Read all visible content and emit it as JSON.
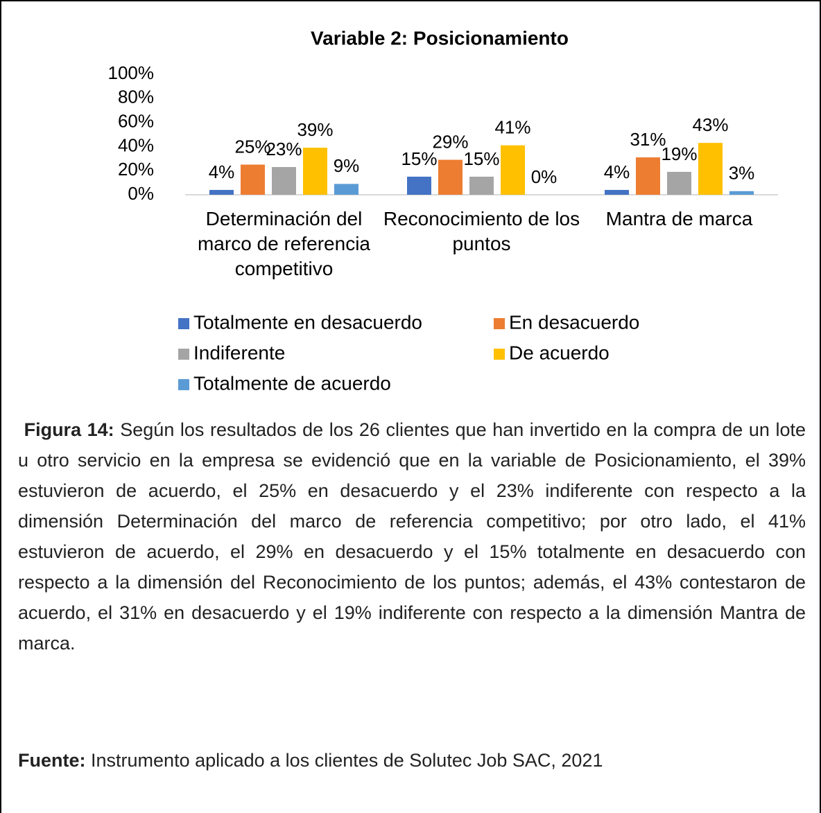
{
  "chart_data": {
    "type": "bar",
    "title": "Variable 2: Posicionamiento",
    "categories": [
      "Determinación del marco de referencia competitivo",
      "Reconocimiento de los puntos",
      "Mantra de marca"
    ],
    "series": [
      {
        "name": "Totalmente en desacuerdo",
        "color": "#4472c4",
        "values": [
          4,
          15,
          4
        ],
        "value_labels": [
          "4%",
          "15%",
          "4%"
        ]
      },
      {
        "name": "En desacuerdo",
        "color": "#ed7d31",
        "values": [
          25,
          29,
          31
        ],
        "value_labels": [
          "25%",
          "29%",
          "31%"
        ]
      },
      {
        "name": "Indiferente",
        "color": "#a5a5a5",
        "values": [
          23,
          15,
          19
        ],
        "value_labels": [
          "23%",
          "15%",
          "19%"
        ]
      },
      {
        "name": "De acuerdo",
        "color": "#ffc000",
        "values": [
          39,
          41,
          43
        ],
        "value_labels": [
          "39%",
          "41%",
          "43%"
        ]
      },
      {
        "name": "Totalmente de acuerdo",
        "color": "#5b9bd5",
        "values": [
          9,
          0,
          3
        ],
        "value_labels": [
          "9%",
          "0%",
          "3%"
        ]
      }
    ],
    "ylim": [
      0,
      100
    ],
    "yticks": [
      {
        "value": 0,
        "label": "0%"
      },
      {
        "value": 20,
        "label": "20%"
      },
      {
        "value": 40,
        "label": "40%"
      },
      {
        "value": 60,
        "label": "60%"
      },
      {
        "value": 80,
        "label": "80%"
      },
      {
        "value": 100,
        "label": "100%"
      }
    ],
    "grid": false,
    "legend": "bottom"
  },
  "caption": {
    "label": "Figura 14:",
    "text": "Según los resultados de los 26 clientes que han invertido en la compra de un lote u otro servicio en la empresa se evidenció que en la variable de Posicionamiento, el 39% estuvieron de acuerdo, el 25% en desacuerdo y el 23% indiferente con respecto a la dimensión Determinación del marco de referencia competitivo; por otro lado, el 41% estuvieron de acuerdo, el 29% en desacuerdo y el 15% totalmente en desacuerdo con respecto a la dimensión del Reconocimiento de los puntos; además, el 43% contestaron de acuerdo, el 31% en desacuerdo y el 19% indiferente con respecto a la dimensión Mantra de marca."
  },
  "source": {
    "label": "Fuente:",
    "text": "Instrumento aplicado a los clientes de Solutec Job SAC, 2021"
  }
}
